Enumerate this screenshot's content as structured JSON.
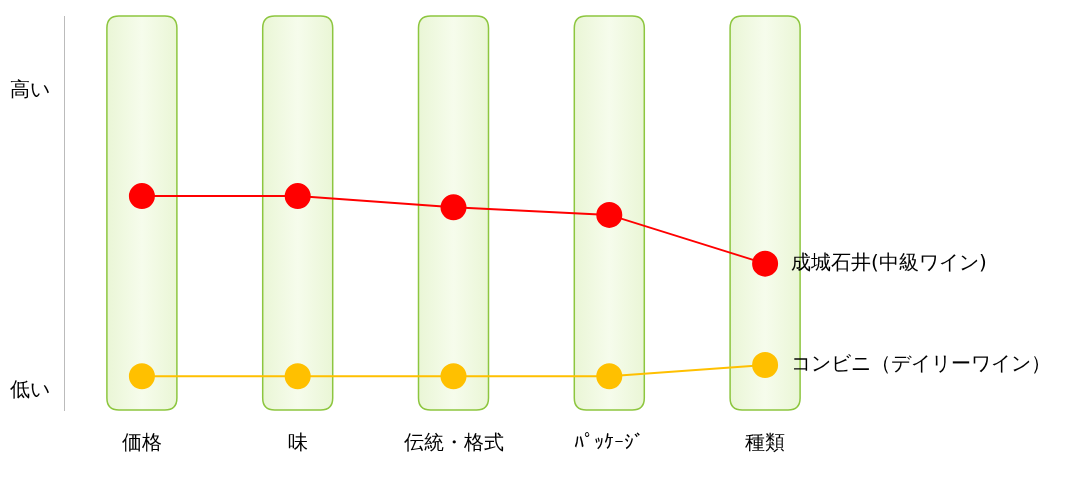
{
  "chart_data": {
    "type": "line",
    "categories": [
      "価格",
      "味",
      "伝統・格式",
      "ﾊﾟｯｹｰｼﾞ",
      "種類"
    ],
    "series": [
      {
        "name": "成城石井(中級ワイン)",
        "color": "#ff0000",
        "values": [
          62,
          62,
          59,
          57,
          44
        ]
      },
      {
        "name": "コンビニ（デイリーワイン）",
        "color": "#ffc000",
        "values": [
          14,
          14,
          14,
          14,
          17
        ]
      }
    ],
    "ylim": [
      5,
      110
    ],
    "yticks": [
      {
        "value": 10,
        "label": "低い"
      },
      {
        "value": 90,
        "label": "高い"
      }
    ],
    "grid": false,
    "marker": "circle"
  }
}
